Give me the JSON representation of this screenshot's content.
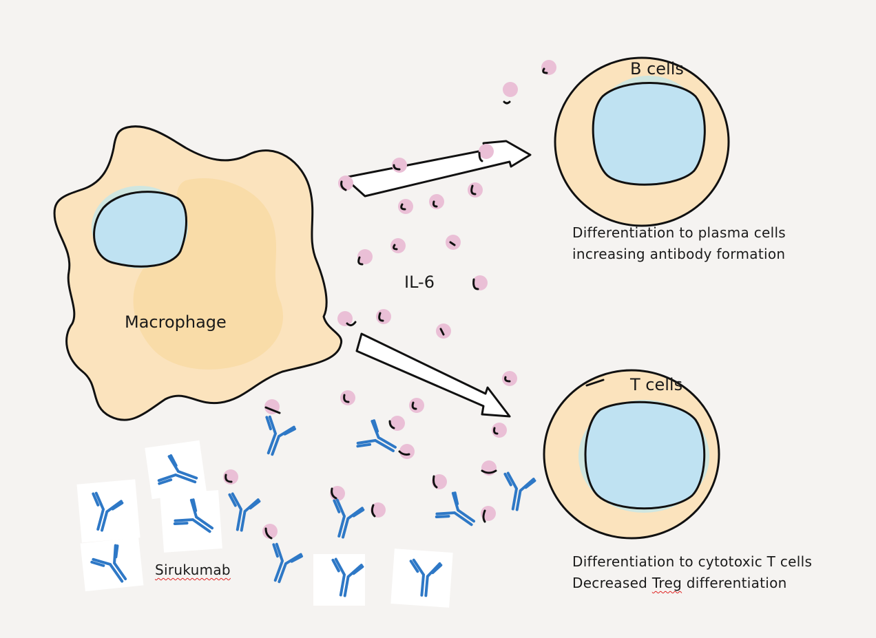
{
  "labels": {
    "macrophage": "Macrophage",
    "il6": "IL-6",
    "b_cells": "B cells",
    "t_cells": "T cells",
    "sirukumab": "Sirukumab",
    "b_effect_line1": "Differentiation to plasma cells",
    "b_effect_line2": "increasing antibody formation",
    "t_effect_line1": "Differentiation to cytotoxic T cells",
    "t_effect_line2_a": "Decreased",
    "t_effect_line2_b": "Treg",
    "t_effect_line2_c": "differentiation"
  },
  "colors": {
    "background": "#f5f3f1",
    "cytoplasm": "#fbe3bd",
    "nucleus": "#bfe2f2",
    "il6_particle": "#eabfd6",
    "antibody": "#2e78c6",
    "outline": "#111111"
  }
}
